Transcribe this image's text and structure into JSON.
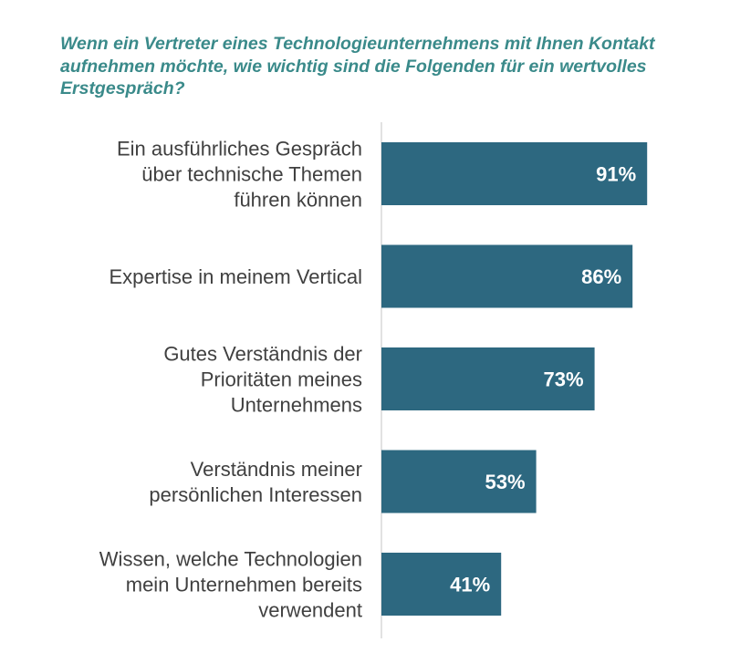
{
  "chart_data": {
    "type": "bar",
    "orientation": "horizontal",
    "title": "Wenn ein Vertreter eines Technologieunternehmens mit Ihnen Kontakt aufnehmen möchte, wie wichtig sind die Folgenden für ein wertvolles Erstgespräch?",
    "categories": [
      [
        "Ein ausführliches Gespräch",
        "über technische Themen",
        "führen können"
      ],
      [
        "Expertise in meinem Vertical"
      ],
      [
        "Gutes Verständnis der",
        "Prioritäten meines",
        "Unternehmens"
      ],
      [
        "Verständnis meiner",
        "persönlichen Interessen"
      ],
      [
        "Wissen, welche Technologien",
        "mein Unternehmen bereits",
        "verwendent"
      ]
    ],
    "values": [
      91,
      86,
      73,
      53,
      41
    ],
    "value_labels": [
      "91%",
      "86%",
      "73%",
      "53%",
      "41%"
    ],
    "xlim": [
      0,
      100
    ],
    "unit": "%",
    "xlabel": "",
    "ylabel": "",
    "grid": false,
    "legend": "none"
  },
  "colors": {
    "bar": "#2d6880",
    "title": "#3a8a8a",
    "label": "#404040",
    "axis": "#d9d9d9",
    "value_text": "#ffffff"
  }
}
